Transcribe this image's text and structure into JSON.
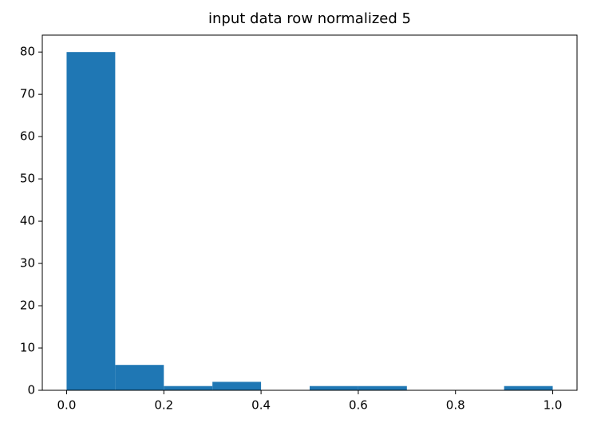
{
  "chart_data": {
    "type": "histogram",
    "title": "input data row normalized 5",
    "bins": [
      0,
      0.1,
      0.2,
      0.3,
      0.4,
      0.5,
      0.6,
      0.7,
      0.8,
      0.9,
      1.0
    ],
    "values": [
      80,
      6,
      1,
      2,
      0,
      1,
      1,
      0,
      0,
      1
    ],
    "color": "#1f77b4",
    "xlim": [
      -0.05,
      1.05
    ],
    "xticks": [
      {
        "value": 0,
        "label": "0.0"
      },
      {
        "value": 0.2,
        "label": "0.2"
      },
      {
        "value": 0.4,
        "label": "0.4"
      },
      {
        "value": 0.6,
        "label": "0.6"
      },
      {
        "value": 0.8,
        "label": "0.8"
      },
      {
        "value": 1.0,
        "label": "1.0"
      }
    ],
    "ylim": [
      0,
      84
    ],
    "yticks": [
      0,
      10,
      20,
      30,
      40,
      50,
      60,
      70,
      80
    ],
    "grid": false
  }
}
